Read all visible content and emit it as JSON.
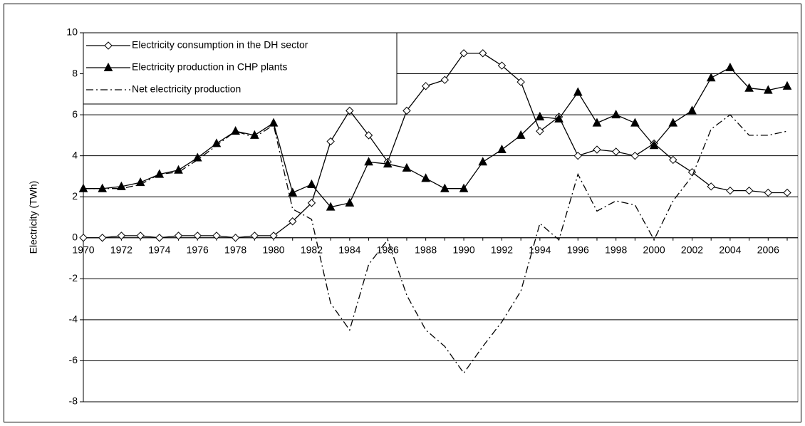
{
  "chart_data": {
    "type": "line",
    "y_label": "Electricity (TWh)",
    "categories": [
      "1970",
      null,
      "1972",
      null,
      "1974",
      null,
      "1976",
      null,
      "1978",
      null,
      "1980",
      null,
      "1982",
      null,
      "1984",
      null,
      "1986",
      null,
      "1988",
      null,
      "1990",
      null,
      "1992",
      null,
      "1994",
      null,
      "1996",
      null,
      "1998",
      null,
      "2000",
      null,
      "2002",
      null,
      "2004",
      null,
      "2006",
      null
    ],
    "series": [
      {
        "name": "Electricity consumption in the DH sector",
        "color": "#000000",
        "marker": "diamond",
        "line_style": "solid",
        "values": [
          0,
          0,
          0.1,
          0.1,
          0,
          0.1,
          0.1,
          0.1,
          0,
          0.1,
          0.1,
          0.8,
          1.7,
          4.7,
          6.2,
          5.0,
          3.7,
          6.2,
          7.4,
          7.7,
          9.0,
          9.0,
          8.4,
          7.6,
          5.2,
          5.9,
          4.0,
          4.3,
          4.2,
          4.0,
          4.6,
          3.8,
          3.2,
          2.5,
          2.3,
          2.3,
          2.2,
          2.2
        ]
      },
      {
        "name": "Electricity production in CHP plants",
        "color": "#000000",
        "marker": "triangle",
        "line_style": "solid",
        "values": [
          2.4,
          2.4,
          2.5,
          2.7,
          3.1,
          3.3,
          3.9,
          4.6,
          5.2,
          5.0,
          5.6,
          2.2,
          2.6,
          1.5,
          1.7,
          3.7,
          3.6,
          3.4,
          2.9,
          2.4,
          2.4,
          3.7,
          4.3,
          5.0,
          5.9,
          5.8,
          7.1,
          5.6,
          6.0,
          5.6,
          4.5,
          5.6,
          6.2,
          7.8,
          8.3,
          7.3,
          7.2,
          7.4
        ]
      },
      {
        "name": "Net electricity production",
        "color": "#000000",
        "marker": "none",
        "line_style": "dash-dot",
        "values": [
          2.4,
          2.4,
          2.4,
          2.6,
          3.1,
          3.2,
          3.8,
          4.5,
          5.2,
          4.9,
          5.5,
          1.4,
          0.9,
          -3.2,
          -4.5,
          -1.3,
          -0.1,
          -2.8,
          -4.5,
          -5.3,
          -6.6,
          -5.3,
          -4.1,
          -2.6,
          0.7,
          -0.1,
          3.1,
          1.3,
          1.8,
          1.6,
          -0.1,
          1.8,
          3.0,
          5.3,
          6.0,
          5.0,
          5.0,
          5.2
        ]
      }
    ],
    "ylim": [
      -8,
      10
    ],
    "yticks": [
      -8,
      -6,
      -4,
      -2,
      0,
      2,
      4,
      6,
      8,
      10
    ],
    "grid": true,
    "legend": "upper-left"
  }
}
